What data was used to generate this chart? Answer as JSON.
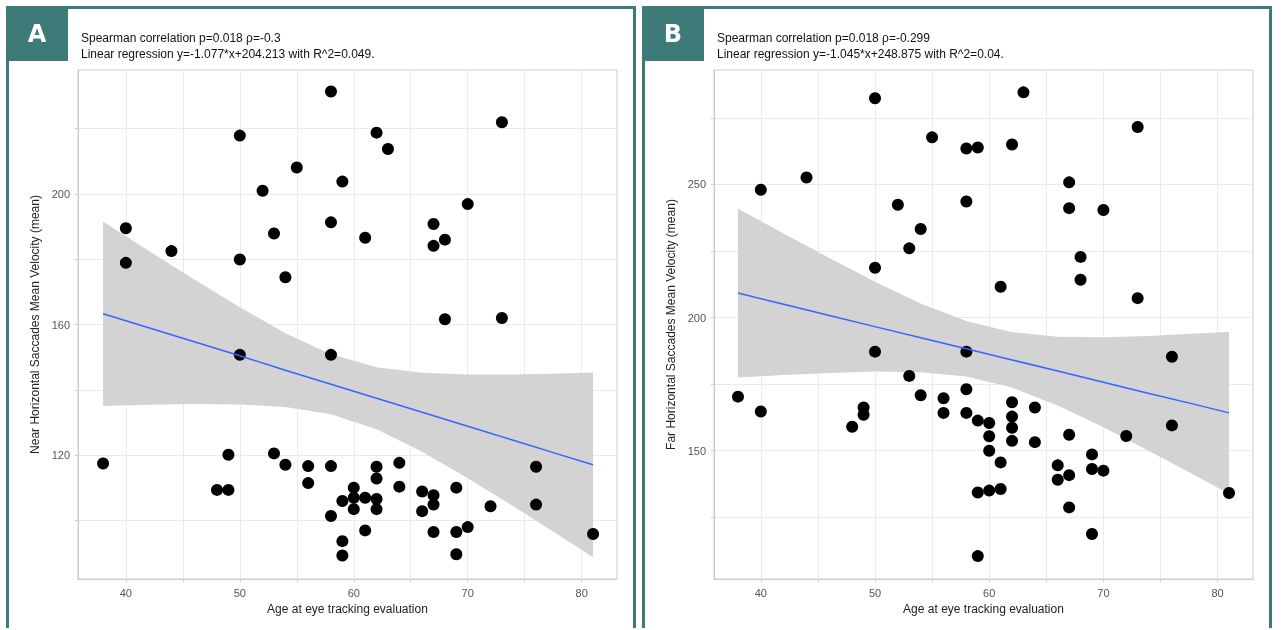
{
  "chart_data": [
    {
      "type": "scatter",
      "title": "A",
      "annotations": [
        "Spearman correlation p=0.018 ρ=-0.3",
        "Linear regression y=-1.077*x+204.213 with R^2=0.049."
      ],
      "xlabel": "Age at eye tracking evaluation",
      "ylabel": "Near Horizontal Saccades Mean Velocity (mean)",
      "xlim": [
        35.8,
        83.1
      ],
      "ylim": [
        82,
        238
      ],
      "xticks": [
        40,
        {
          "value": 45,
          "label": null
        },
        50,
        {
          "value": 55,
          "label": null
        },
        60,
        {
          "value": 65,
          "label": null
        },
        70,
        {
          "value": 75,
          "label": null
        },
        80
      ],
      "yticks": [
        {
          "value": 100,
          "label": null
        },
        120,
        {
          "value": 140,
          "label": null
        },
        160,
        {
          "value": 180,
          "label": null
        },
        200,
        {
          "value": 220,
          "label": null
        }
      ],
      "grid": true,
      "series": [
        {
          "marker": "circle",
          "color": "#000000",
          "x": [
            58,
            73,
            50,
            62,
            63,
            55,
            59,
            52,
            70,
            40,
            58,
            53,
            67,
            61,
            68,
            67,
            44,
            40,
            50,
            54,
            68,
            73,
            50,
            58,
            38,
            49,
            53,
            54,
            56,
            58,
            62,
            64,
            76,
            62,
            56,
            48,
            49,
            60,
            64,
            69,
            66,
            67,
            59,
            60,
            61,
            62,
            67,
            72,
            76,
            60,
            62,
            66,
            58,
            70,
            61,
            67,
            69,
            81,
            59,
            59,
            69
          ],
          "values": [
            231.4,
            222,
            217.9,
            218.8,
            213.8,
            208.1,
            203.8,
            201,
            196.9,
            189.5,
            191.3,
            187.9,
            190.8,
            186.6,
            186,
            184.1,
            182.5,
            178.9,
            179.9,
            174.5,
            161.6,
            162,
            150.7,
            150.7,
            117.4,
            120.1,
            120.5,
            117,
            116.6,
            116.6,
            116.4,
            117.6,
            116.4,
            112.8,
            111.4,
            109.3,
            109.3,
            110,
            110.3,
            110,
            108.8,
            107.7,
            105.9,
            106.9,
            106.9,
            106.5,
            104.8,
            104.3,
            104.8,
            103.4,
            103.4,
            102.8,
            101.3,
            97.9,
            96.9,
            96.4,
            96.4,
            95.8,
            93.6,
            89.2,
            89.6
          ]
        },
        {
          "type": "line",
          "marker": "none",
          "color": "#3366ff",
          "x": [
            38,
            42,
            46,
            50,
            54,
            58,
            62,
            66,
            70,
            74,
            78,
            81
          ],
          "values": [
            163.3,
            159.0,
            154.7,
            150.4,
            146.0,
            141.7,
            137.4,
            133.1,
            128.8,
            124.5,
            120.2,
            117.0
          ],
          "lower": [
            135.0,
            135.4,
            135.6,
            135.5,
            134.7,
            132.5,
            127.9,
            121.0,
            112.9,
            104.3,
            95.4,
            88.7
          ],
          "upper": [
            191.6,
            182.6,
            173.8,
            165.3,
            157.3,
            150.9,
            146.9,
            145.2,
            144.7,
            144.7,
            145.0,
            145.3
          ]
        }
      ]
    },
    {
      "type": "scatter",
      "title": "B",
      "annotations": [
        "Spearman correlation p=0.018 ρ=-0.299",
        "Linear regression y=-1.045*x+248.875 with R^2=0.04."
      ],
      "xlabel": "Age at eye tracking evaluation",
      "ylabel": "Far Horizontal Saccades Mean Velocity (mean)",
      "xlim": [
        35.9,
        83.1
      ],
      "ylim": [
        101.8,
        293
      ],
      "xticks": [
        40,
        {
          "value": 45,
          "label": null
        },
        50,
        {
          "value": 55,
          "label": null
        },
        60,
        {
          "value": 65,
          "label": null
        },
        70,
        {
          "value": 75,
          "label": null
        },
        80
      ],
      "yticks": [
        {
          "value": 125,
          "label": null
        },
        150,
        {
          "value": 175,
          "label": null
        },
        200,
        {
          "value": 225,
          "label": null
        },
        250,
        {
          "value": 275,
          "label": null
        }
      ],
      "grid": true,
      "series": [
        {
          "marker": "circle",
          "color": "#000000",
          "x": [
            50,
            63,
            73,
            55,
            58,
            59,
            62,
            44,
            40,
            67,
            52,
            58,
            67,
            70,
            54,
            53,
            50,
            68,
            68,
            61,
            73,
            50,
            58,
            76,
            53,
            38,
            40,
            54,
            56,
            58,
            56,
            58,
            49,
            49,
            48,
            59,
            60,
            62,
            62,
            62,
            62,
            64,
            64,
            60,
            60,
            61,
            67,
            72,
            76,
            69,
            66,
            67,
            66,
            69,
            70,
            59,
            60,
            61,
            81,
            67,
            69,
            59
          ],
          "values": [
            282.4,
            284.6,
            271.6,
            267.7,
            263.5,
            263.9,
            265,
            252.6,
            248,
            250.8,
            242.4,
            243.6,
            241.1,
            240.4,
            233.3,
            226,
            218.7,
            222.8,
            214.2,
            211.6,
            207.3,
            187.2,
            187.2,
            185.3,
            178.1,
            170.3,
            164.7,
            170.8,
            169.7,
            173.1,
            164.2,
            164.2,
            166.2,
            163.5,
            159,
            161.3,
            160.4,
            168.2,
            162.8,
            158.6,
            153.7,
            166.2,
            153.2,
            155.4,
            150,
            145.6,
            156,
            155.5,
            159.5,
            148.6,
            144.5,
            140.8,
            139.1,
            143.1,
            142.5,
            134.3,
            135,
            135.6,
            134.1,
            128.7,
            118.7,
            110.4
          ]
        },
        {
          "type": "line",
          "marker": "none",
          "color": "#3366ff",
          "x": [
            38,
            42,
            46,
            50,
            54,
            58,
            62,
            66,
            70,
            74,
            78,
            81
          ],
          "values": [
            209.2,
            205.0,
            200.8,
            196.6,
            192.4,
            188.3,
            184.1,
            179.9,
            175.7,
            171.5,
            167.4,
            164.2
          ],
          "lower": [
            177.5,
            178.4,
            179.2,
            179.7,
            179.5,
            177.9,
            173.7,
            167.0,
            158.8,
            149.9,
            140.8,
            133.8
          ],
          "upper": [
            240.9,
            231.6,
            222.4,
            213.5,
            205.3,
            198.7,
            194.5,
            192.8,
            192.6,
            193.1,
            194.0,
            194.6
          ]
        }
      ]
    }
  ]
}
